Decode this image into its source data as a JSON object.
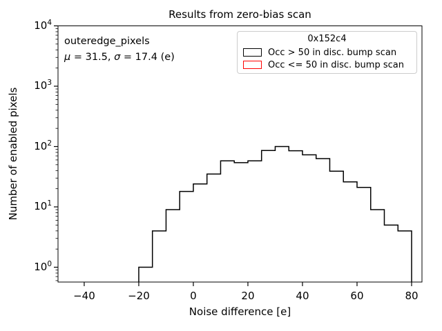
{
  "title": "Results from zero-bias scan",
  "axes": {
    "x_label": "Noise difference [e]",
    "y_label": "Number of enabled pixels",
    "x_ticks": [
      "−40",
      "−20",
      "0",
      "20",
      "40",
      "60",
      "80"
    ],
    "x_tick_values": [
      -40,
      -20,
      0,
      20,
      40,
      60,
      80
    ],
    "y_tick_base": "10",
    "y_tick_exponents": [
      4,
      3,
      2,
      1,
      0
    ]
  },
  "annotation": {
    "line1": "outeredge_pixels",
    "mu_symbol": "μ",
    "mu_rest": " = 31.5, ",
    "sigma_symbol": "σ",
    "sigma_rest": " = 17.4 (e)"
  },
  "legend": {
    "title": "0x152c4",
    "entries": [
      {
        "label": "Occ > 50 in disc. bump scan",
        "color": "#000000"
      },
      {
        "label": "Occ <= 50 in disc. bump scan",
        "color": "#ff0000"
      }
    ]
  },
  "chart_data": {
    "type": "bar",
    "subtype": "step-histogram",
    "title": "Results from zero-bias scan",
    "xlabel": "Noise difference [e]",
    "ylabel": "Number of enabled pixels",
    "yscale": "log",
    "xlim": [
      -49.6,
      83.8
    ],
    "ylim": [
      0.568,
      10000
    ],
    "x_ticks": [
      -40,
      -20,
      0,
      20,
      40,
      60,
      80
    ],
    "y_ticks": [
      1,
      10,
      100,
      1000,
      10000
    ],
    "legend_title": "0x152c4",
    "legend_position": "upper right",
    "grid": false,
    "bin_edges": [
      -20,
      -15,
      -10,
      -5,
      0,
      5,
      10,
      15,
      20,
      25,
      30,
      35,
      40,
      45,
      50,
      55,
      60,
      65,
      70,
      75,
      80
    ],
    "series": [
      {
        "name": "Occ > 50 in disc. bump scan",
        "color": "#000000",
        "counts": [
          1,
          4,
          9,
          18,
          24,
          35,
          58,
          54,
          58,
          86,
          100,
          85,
          73,
          63,
          39,
          26,
          21,
          9,
          5,
          4
        ]
      },
      {
        "name": "Occ <= 50 in disc. bump scan",
        "color": "#ff0000",
        "counts": []
      }
    ],
    "stats": {
      "mu": 31.5,
      "sigma": 17.4,
      "stats_units": "e",
      "dataset": "outeredge_pixels"
    }
  }
}
